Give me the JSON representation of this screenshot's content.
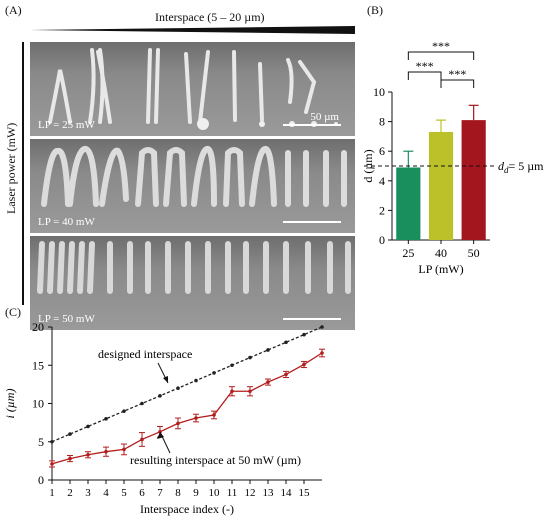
{
  "panel_a": {
    "label": "(A)",
    "top_label": "Interspace (5 – 20 µm)",
    "side_label": "Laser power (mW)",
    "rows": [
      {
        "label": "LP = 25 mW",
        "scale": "50 µm"
      },
      {
        "label": "LP = 40 mW",
        "scale": ""
      },
      {
        "label": "LP = 50 mW",
        "scale": ""
      }
    ]
  },
  "panel_b": {
    "label": "(B)"
  },
  "panel_c": {
    "label": "(C)"
  },
  "colors": {
    "bar_25": "#1a8f5e",
    "bar_40": "#bcc12a",
    "bar_50": "#a3161d",
    "designed": "#222222",
    "resulting": "#b21d1d"
  },
  "chart_data": [
    {
      "type": "bar",
      "categories": [
        "25",
        "40",
        "50"
      ],
      "values": [
        4.9,
        7.3,
        8.1
      ],
      "errors": [
        1.1,
        0.8,
        1.0
      ],
      "xlabel": "LP (mW)",
      "ylabel": "d (µm)",
      "ylim": [
        0,
        10
      ],
      "yticks": [
        0,
        2,
        4,
        6,
        8,
        10
      ],
      "reference_line": {
        "value": 5,
        "label": "dₑ= 5 µm",
        "label_main": "d",
        "label_sub": "d",
        "label_rest": "= 5 µm"
      },
      "significance": [
        {
          "pair": [
            "25",
            "40"
          ],
          "label": "***"
        },
        {
          "pair": [
            "25",
            "50"
          ],
          "label": "***"
        },
        {
          "pair": [
            "40",
            "50"
          ],
          "label": "***"
        }
      ]
    },
    {
      "type": "line",
      "x": [
        1,
        2,
        3,
        4,
        5,
        6,
        7,
        8,
        9,
        10,
        11,
        12,
        13,
        14,
        15,
        16
      ],
      "xticks": [
        1,
        2,
        3,
        4,
        5,
        6,
        7,
        8,
        9,
        10,
        11,
        12,
        13,
        14,
        15
      ],
      "xlabel": "Interspace index (-)",
      "ylabel": "i (µm)",
      "ylim": [
        0,
        20
      ],
      "yticks": [
        0,
        5,
        10,
        15,
        20
      ],
      "series": [
        {
          "name": "designed interspace",
          "values": [
            5,
            6,
            7,
            8,
            9,
            10,
            11,
            12,
            13,
            14,
            15,
            16,
            17,
            18,
            19,
            20
          ]
        },
        {
          "name": "resulting interspace at 50 mW (µm)",
          "values": [
            2.1,
            2.8,
            3.3,
            3.7,
            4.0,
            5.3,
            6.3,
            7.4,
            8.1,
            8.5,
            11.6,
            11.6,
            12.8,
            13.8,
            15.1,
            16.6
          ],
          "errors": [
            0.4,
            0.4,
            0.4,
            0.6,
            0.7,
            0.9,
            0.7,
            0.7,
            0.5,
            0.5,
            0.6,
            0.6,
            0.4,
            0.4,
            0.4,
            0.5
          ]
        }
      ]
    }
  ]
}
